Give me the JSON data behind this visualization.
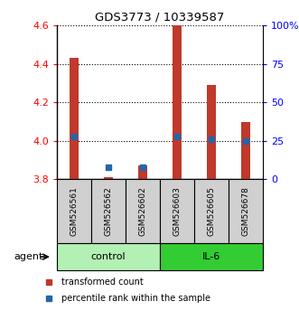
{
  "title": "GDS3773 / 10339587",
  "samples": [
    "GSM526561",
    "GSM526562",
    "GSM526602",
    "GSM526603",
    "GSM526605",
    "GSM526678"
  ],
  "transformed_count": [
    4.43,
    3.81,
    3.87,
    4.6,
    4.29,
    4.1
  ],
  "percentile_rank": [
    28,
    8,
    8,
    28,
    26,
    25
  ],
  "ylim_left": [
    3.8,
    4.6
  ],
  "ylim_right": [
    0,
    100
  ],
  "yticks_left": [
    3.8,
    4.0,
    4.2,
    4.4,
    4.6
  ],
  "yticks_right": [
    0,
    25,
    50,
    75,
    100
  ],
  "bar_color": "#c0392b",
  "dot_color": "#2166ac",
  "bar_width": 0.25,
  "control_color": "#b3f0b3",
  "il6_color": "#33cc33",
  "agent_label": "agent",
  "control_label": "control",
  "il6_label": "IL-6",
  "legend_bar_label": "transformed count",
  "legend_dot_label": "percentile rank within the sample",
  "grid_color": "#000000",
  "bg_color": "#ffffff"
}
